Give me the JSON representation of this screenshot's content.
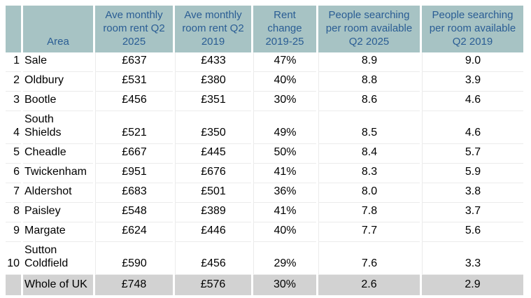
{
  "chart_data": {
    "type": "table",
    "title": "",
    "columns": [
      "",
      "Area",
      "Ave monthly room rent Q2 2025",
      "Ave monthly room rent Q2 2019",
      "Rent change 2019-25",
      "People searching per room available Q2 2025",
      "People searching per room available Q2 2019"
    ],
    "rows": [
      {
        "rank": "1",
        "area": "Sale",
        "rent_q2_2025": "£637",
        "rent_q2_2019": "£433",
        "rent_change": "47%",
        "searchers_q2_2025": "8.9",
        "searchers_q2_2019": "9.0"
      },
      {
        "rank": "2",
        "area": "Oldbury",
        "rent_q2_2025": "£531",
        "rent_q2_2019": "£380",
        "rent_change": "40%",
        "searchers_q2_2025": "8.8",
        "searchers_q2_2019": "3.9"
      },
      {
        "rank": "3",
        "area": "Bootle",
        "rent_q2_2025": "£456",
        "rent_q2_2019": "£351",
        "rent_change": "30%",
        "searchers_q2_2025": "8.6",
        "searchers_q2_2019": "4.6"
      },
      {
        "rank": "4",
        "area": "South Shields",
        "rent_q2_2025": "£521",
        "rent_q2_2019": "£350",
        "rent_change": "49%",
        "searchers_q2_2025": "8.5",
        "searchers_q2_2019": "4.6"
      },
      {
        "rank": "5",
        "area": "Cheadle",
        "rent_q2_2025": "£667",
        "rent_q2_2019": "£445",
        "rent_change": "50%",
        "searchers_q2_2025": "8.4",
        "searchers_q2_2019": "5.7"
      },
      {
        "rank": "6",
        "area": "Twickenham",
        "rent_q2_2025": "£951",
        "rent_q2_2019": "£676",
        "rent_change": "41%",
        "searchers_q2_2025": "8.3",
        "searchers_q2_2019": "5.9"
      },
      {
        "rank": "7",
        "area": "Aldershot",
        "rent_q2_2025": "£683",
        "rent_q2_2019": "£501",
        "rent_change": "36%",
        "searchers_q2_2025": "8.0",
        "searchers_q2_2019": "3.8"
      },
      {
        "rank": "8",
        "area": "Paisley",
        "rent_q2_2025": "£548",
        "rent_q2_2019": "£389",
        "rent_change": "41%",
        "searchers_q2_2025": "7.8",
        "searchers_q2_2019": "3.7"
      },
      {
        "rank": "9",
        "area": "Margate",
        "rent_q2_2025": "£624",
        "rent_q2_2019": "£446",
        "rent_change": "40%",
        "searchers_q2_2025": "7.7",
        "searchers_q2_2019": "5.6"
      },
      {
        "rank": "10",
        "area": "Sutton Coldfield",
        "rent_q2_2025": "£590",
        "rent_q2_2019": "£456",
        "rent_change": "29%",
        "searchers_q2_2025": "7.6",
        "searchers_q2_2019": "3.3"
      }
    ],
    "footer": {
      "rank": "",
      "area": "Whole of UK",
      "rent_q2_2025": "£748",
      "rent_q2_2019": "£576",
      "rent_change": "30%",
      "searchers_q2_2025": "2.6",
      "searchers_q2_2019": "2.9"
    }
  },
  "colors": {
    "header_bg": "#a7c3c4",
    "header_text": "#2a5d94",
    "footer_bg": "#d2d2d2",
    "row_border": "#ebebeb",
    "body_text": "#000000"
  }
}
